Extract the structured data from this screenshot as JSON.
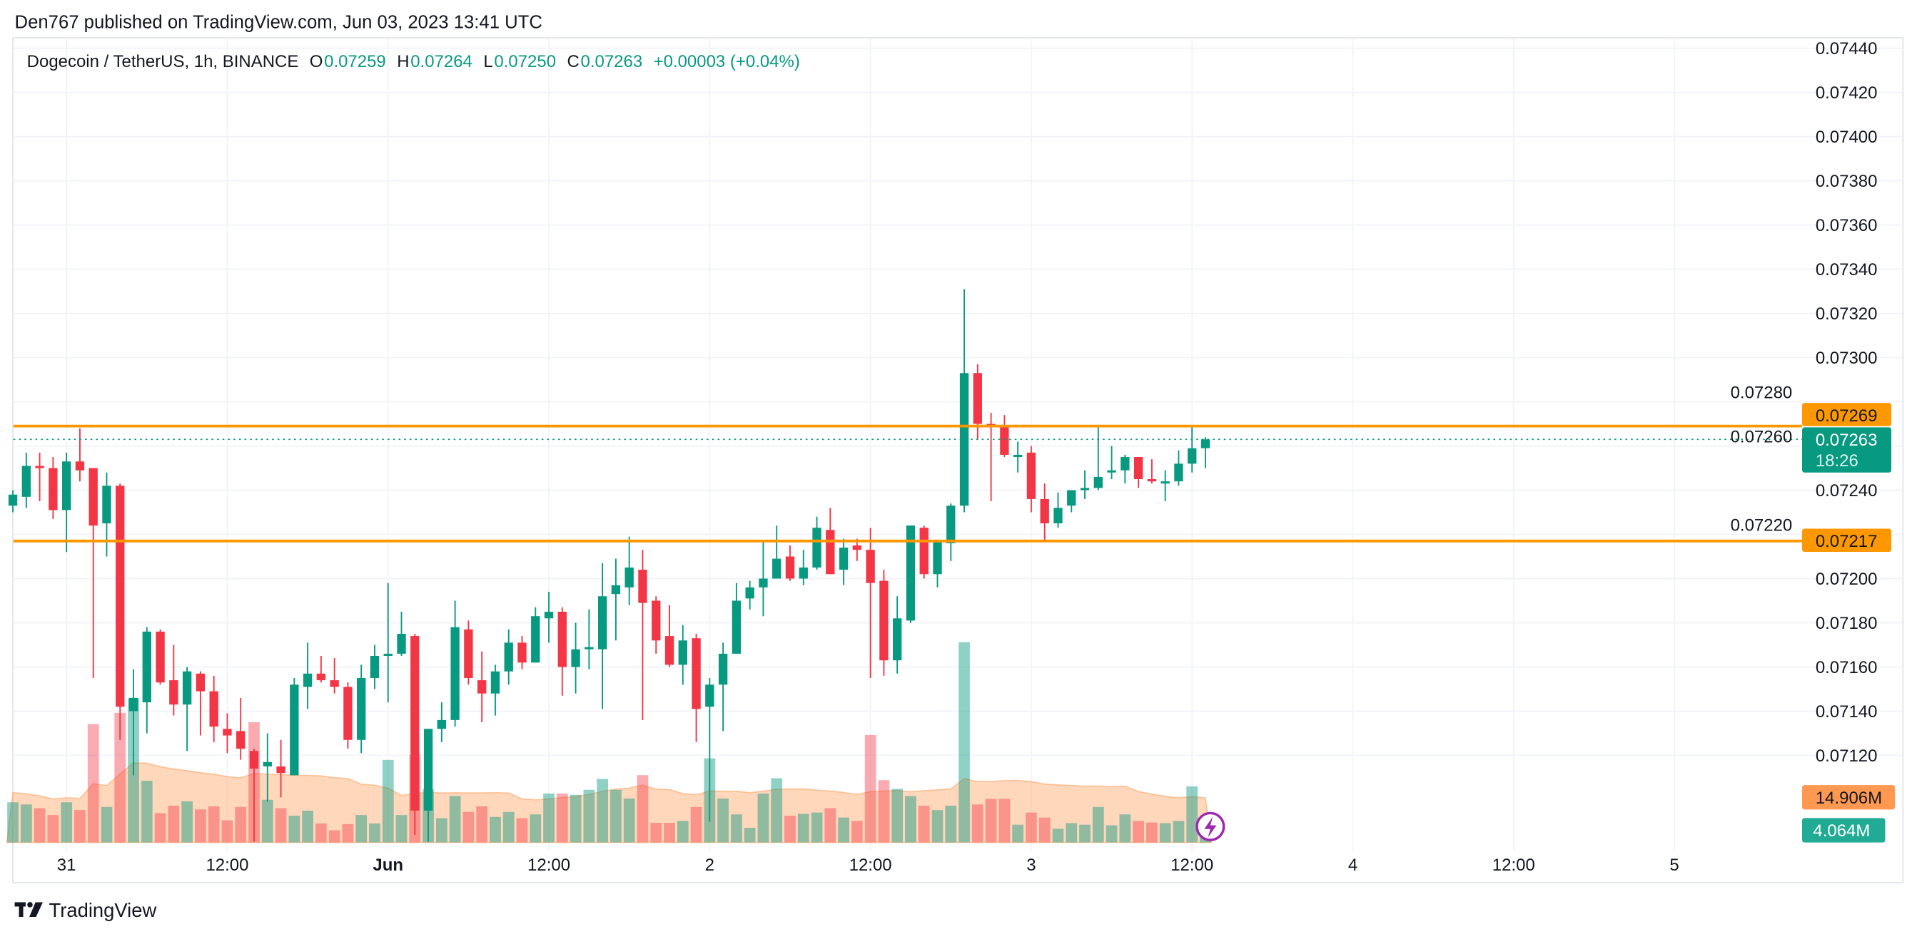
{
  "header": {
    "published": "Den767 published on TradingView.com, Jun 03, 2023 13:41 UTC"
  },
  "legend": {
    "symbol": "Dogecoin / TetherUS, 1h, BINANCE",
    "o_label": "O",
    "o_value": "0.07259",
    "h_label": "H",
    "h_value": "0.07264",
    "l_label": "L",
    "l_value": "0.07250",
    "c_label": "C",
    "c_value": "0.07263",
    "change": "+0.00003 (+0.04%)"
  },
  "price_labels": {
    "resistance": "0.07269",
    "current": "0.07263",
    "countdown": "18:26",
    "support": "0.07217",
    "volume_ma": "14.906M",
    "volume": "4.064M"
  },
  "footer": {
    "brand": "TradingView"
  },
  "colors": {
    "up": "#089981",
    "down": "#f23645",
    "level": "#ff9800",
    "volume_ma": "#ff9850",
    "volume_label": "#22ab94",
    "icon": "#9c27b0"
  },
  "icons": {
    "realtime": "lightning-bolt-icon",
    "logo": "tradingview-logo-icon"
  },
  "chart_data": {
    "type": "candlestick",
    "interval": "1h",
    "ylim": [
      0.0711,
      0.0745
    ],
    "y_ticks": [
      "0.07120",
      "0.07140",
      "0.07160",
      "0.07180",
      "0.07200",
      "0.07220",
      "0.07240",
      "0.07260",
      "0.07280",
      "0.07300",
      "0.07320",
      "0.07340",
      "0.07360",
      "0.07380",
      "0.07400",
      "0.07420",
      "0.07440"
    ],
    "x_ticks": [
      {
        "label": "31",
        "t": "2023-05-31 00:00",
        "bold": false
      },
      {
        "label": "12:00",
        "t": "2023-05-31 12:00",
        "bold": false
      },
      {
        "label": "Jun",
        "t": "2023-06-01 00:00",
        "bold": true
      },
      {
        "label": "12:00",
        "t": "2023-06-01 12:00",
        "bold": false
      },
      {
        "label": "2",
        "t": "2023-06-02 00:00",
        "bold": false
      },
      {
        "label": "12:00",
        "t": "2023-06-02 12:00",
        "bold": false
      },
      {
        "label": "3",
        "t": "2023-06-03 00:00",
        "bold": false
      },
      {
        "label": "12:00",
        "t": "2023-06-03 12:00",
        "bold": false
      },
      {
        "label": "4",
        "t": "2023-06-04 00:00",
        "bold": false
      },
      {
        "label": "12:00",
        "t": "2023-06-04 12:00",
        "bold": false
      },
      {
        "label": "5",
        "t": "2023-06-05 00:00",
        "bold": false
      }
    ],
    "horizontal_levels": [
      0.07269,
      0.07217
    ],
    "last_price": 0.07263,
    "volume_ma_last": 14.906,
    "grid": true,
    "columns": [
      "time",
      "open",
      "high",
      "low",
      "close",
      "volume_M"
    ],
    "candles": [
      [
        "2023-05-30 20:00",
        0.07233,
        0.0724,
        0.0723,
        0.07238,
        12.9
      ],
      [
        "2023-05-30 21:00",
        0.07237,
        0.07257,
        0.07232,
        0.07251,
        12.2
      ],
      [
        "2023-05-30 22:00",
        0.07251,
        0.07257,
        0.07235,
        0.0725,
        11.0
      ],
      [
        "2023-05-30 23:00",
        0.0725,
        0.07255,
        0.07227,
        0.07231,
        8.8
      ],
      [
        "2023-05-31 00:00",
        0.07231,
        0.07257,
        0.07212,
        0.07253,
        12.9
      ],
      [
        "2023-05-31 01:00",
        0.07253,
        0.07268,
        0.07244,
        0.07249,
        10.4
      ],
      [
        "2023-05-31 02:00",
        0.0725,
        0.0725,
        0.07155,
        0.07224,
        38.0
      ],
      [
        "2023-05-31 03:00",
        0.07225,
        0.07248,
        0.0721,
        0.07242,
        11.4
      ],
      [
        "2023-05-31 04:00",
        0.07242,
        0.07243,
        0.07127,
        0.07142,
        41.6
      ],
      [
        "2023-05-31 05:00",
        0.0714,
        0.07159,
        0.07111,
        0.07146,
        46.3
      ],
      [
        "2023-05-31 06:00",
        0.07144,
        0.07178,
        0.0713,
        0.07176,
        19.8
      ],
      [
        "2023-05-31 07:00",
        0.07176,
        0.07177,
        0.07152,
        0.07153,
        9.4
      ],
      [
        "2023-05-31 08:00",
        0.07154,
        0.0717,
        0.07138,
        0.07143,
        11.8
      ],
      [
        "2023-05-31 09:00",
        0.07143,
        0.0716,
        0.07122,
        0.07158,
        13.2
      ],
      [
        "2023-05-31 10:00",
        0.07157,
        0.07158,
        0.07129,
        0.07149,
        10.6
      ],
      [
        "2023-05-31 11:00",
        0.07149,
        0.07156,
        0.07126,
        0.07133,
        11.6
      ],
      [
        "2023-05-31 12:00",
        0.07132,
        0.07139,
        0.07121,
        0.07129,
        7.1
      ],
      [
        "2023-05-31 13:00",
        0.07131,
        0.07146,
        0.07118,
        0.07123,
        11.4
      ],
      [
        "2023-05-31 14:00",
        0.07122,
        0.07123,
        0.07081,
        0.07114,
        38.6
      ],
      [
        "2023-05-31 15:00",
        0.07115,
        0.0713,
        0.07099,
        0.07117,
        13.7
      ],
      [
        "2023-05-31 16:00",
        0.07115,
        0.07127,
        0.07101,
        0.07112,
        11.0
      ],
      [
        "2023-05-31 17:00",
        0.07111,
        0.07155,
        0.07111,
        0.07152,
        8.6
      ],
      [
        "2023-05-31 18:00",
        0.07151,
        0.07171,
        0.07141,
        0.07157,
        10.2
      ],
      [
        "2023-05-31 19:00",
        0.07157,
        0.07165,
        0.07153,
        0.07154,
        6.1
      ],
      [
        "2023-05-31 20:00",
        0.07154,
        0.07164,
        0.07148,
        0.07151,
        3.9
      ],
      [
        "2023-05-31 21:00",
        0.07151,
        0.07153,
        0.07123,
        0.07127,
        5.9
      ],
      [
        "2023-05-31 22:00",
        0.07127,
        0.07161,
        0.07121,
        0.07155,
        8.8
      ],
      [
        "2023-05-31 23:00",
        0.07155,
        0.0717,
        0.0715,
        0.07165,
        6.1
      ],
      [
        "2023-06-01 00:00",
        0.07165,
        0.07198,
        0.07144,
        0.07166,
        26.5
      ],
      [
        "2023-06-01 01:00",
        0.07166,
        0.07185,
        0.07165,
        0.07175,
        8.8
      ],
      [
        "2023-06-01 02:00",
        0.07174,
        0.07175,
        0.07084,
        0.07095,
        28.2
      ],
      [
        "2023-06-01 03:00",
        0.07095,
        0.07132,
        0.07081,
        0.07132,
        17.1
      ],
      [
        "2023-06-01 04:00",
        0.07132,
        0.07144,
        0.07126,
        0.07136,
        7.8
      ],
      [
        "2023-06-01 05:00",
        0.07136,
        0.0719,
        0.07133,
        0.07178,
        14.9
      ],
      [
        "2023-06-01 06:00",
        0.07177,
        0.07181,
        0.07152,
        0.07155,
        9.8
      ],
      [
        "2023-06-01 07:00",
        0.07154,
        0.07167,
        0.07135,
        0.07148,
        11.6
      ],
      [
        "2023-06-01 08:00",
        0.07148,
        0.07161,
        0.07138,
        0.07158,
        8.2
      ],
      [
        "2023-06-01 09:00",
        0.07158,
        0.07177,
        0.07152,
        0.07171,
        9.8
      ],
      [
        "2023-06-01 10:00",
        0.07171,
        0.07174,
        0.07159,
        0.07162,
        7.8
      ],
      [
        "2023-06-01 11:00",
        0.07162,
        0.07187,
        0.07162,
        0.07183,
        9.0
      ],
      [
        "2023-06-01 12:00",
        0.07182,
        0.07194,
        0.07171,
        0.07185,
        15.7
      ],
      [
        "2023-06-01 13:00",
        0.07185,
        0.07187,
        0.07147,
        0.0716,
        15.7
      ],
      [
        "2023-06-01 14:00",
        0.0716,
        0.0718,
        0.07148,
        0.07168,
        15.3
      ],
      [
        "2023-06-01 15:00",
        0.07168,
        0.07186,
        0.07159,
        0.07169,
        16.9
      ],
      [
        "2023-06-01 16:00",
        0.07168,
        0.07207,
        0.07141,
        0.07192,
        20.4
      ],
      [
        "2023-06-01 17:00",
        0.07193,
        0.07209,
        0.07172,
        0.07197,
        16.9
      ],
      [
        "2023-06-01 18:00",
        0.07196,
        0.07219,
        0.07188,
        0.07205,
        14.1
      ],
      [
        "2023-06-01 19:00",
        0.07204,
        0.07213,
        0.07136,
        0.07189,
        21.6
      ],
      [
        "2023-06-01 20:00",
        0.0719,
        0.07192,
        0.07166,
        0.07172,
        6.3
      ],
      [
        "2023-06-01 21:00",
        0.07174,
        0.07188,
        0.0716,
        0.07161,
        6.3
      ],
      [
        "2023-06-01 22:00",
        0.07161,
        0.07179,
        0.07152,
        0.07172,
        6.9
      ],
      [
        "2023-06-01 23:00",
        0.07173,
        0.07175,
        0.07126,
        0.07141,
        11.4
      ],
      [
        "2023-06-02 00:00",
        0.07142,
        0.07155,
        0.0709,
        0.07152,
        27.0
      ],
      [
        "2023-06-02 01:00",
        0.07152,
        0.07171,
        0.07131,
        0.07166,
        14.1
      ],
      [
        "2023-06-02 02:00",
        0.07166,
        0.07198,
        0.07166,
        0.0719,
        9.0
      ],
      [
        "2023-06-02 03:00",
        0.07191,
        0.07199,
        0.07186,
        0.07196,
        4.7
      ],
      [
        "2023-06-02 04:00",
        0.07196,
        0.07217,
        0.07183,
        0.072,
        15.7
      ],
      [
        "2023-06-02 05:00",
        0.072,
        0.07224,
        0.072,
        0.07209,
        20.6
      ],
      [
        "2023-06-02 06:00",
        0.0721,
        0.07215,
        0.07199,
        0.072,
        8.6
      ],
      [
        "2023-06-02 07:00",
        0.072,
        0.07213,
        0.07197,
        0.07205,
        9.2
      ],
      [
        "2023-06-02 08:00",
        0.07205,
        0.07228,
        0.07204,
        0.07223,
        9.6
      ],
      [
        "2023-06-02 09:00",
        0.07222,
        0.07232,
        0.07202,
        0.07202,
        11.0
      ],
      [
        "2023-06-02 10:00",
        0.07204,
        0.07218,
        0.07197,
        0.07214,
        8.0
      ],
      [
        "2023-06-02 11:00",
        0.07215,
        0.07218,
        0.07208,
        0.07213,
        6.9
      ],
      [
        "2023-06-02 12:00",
        0.07213,
        0.07223,
        0.07155,
        0.07198,
        34.5
      ],
      [
        "2023-06-02 13:00",
        0.07199,
        0.07204,
        0.07156,
        0.07163,
        20.0
      ],
      [
        "2023-06-02 14:00",
        0.07163,
        0.07192,
        0.07157,
        0.07182,
        17.2
      ],
      [
        "2023-06-02 15:00",
        0.07181,
        0.07224,
        0.0718,
        0.07224,
        14.9
      ],
      [
        "2023-06-02 16:00",
        0.07223,
        0.07224,
        0.072,
        0.07202,
        11.8
      ],
      [
        "2023-06-02 17:00",
        0.07202,
        0.07217,
        0.07196,
        0.07217,
        10.4
      ],
      [
        "2023-06-02 18:00",
        0.07216,
        0.07234,
        0.07208,
        0.07233,
        11.8
      ],
      [
        "2023-06-02 19:00",
        0.07233,
        0.07331,
        0.0723,
        0.07293,
        64.3
      ],
      [
        "2023-06-02 20:00",
        0.07293,
        0.07297,
        0.07263,
        0.0727,
        12.2
      ],
      [
        "2023-06-02 21:00",
        0.0727,
        0.07275,
        0.07235,
        0.07269,
        14.0
      ],
      [
        "2023-06-02 22:00",
        0.07269,
        0.07274,
        0.07255,
        0.07256,
        14.0
      ],
      [
        "2023-06-02 23:00",
        0.07255,
        0.07262,
        0.07248,
        0.07256,
        5.7
      ],
      [
        "2023-06-03 00:00",
        0.07257,
        0.0726,
        0.0723,
        0.07236,
        9.6
      ],
      [
        "2023-06-03 01:00",
        0.07236,
        0.07243,
        0.07217,
        0.07225,
        8.0
      ],
      [
        "2023-06-03 02:00",
        0.07225,
        0.07239,
        0.07223,
        0.07232,
        4.4
      ],
      [
        "2023-06-03 03:00",
        0.07233,
        0.0724,
        0.0723,
        0.0724,
        6.2
      ],
      [
        "2023-06-03 04:00",
        0.0724,
        0.07249,
        0.07236,
        0.07241,
        5.7
      ],
      [
        "2023-06-03 05:00",
        0.07241,
        0.07269,
        0.0724,
        0.07246,
        11.4
      ],
      [
        "2023-06-03 06:00",
        0.07248,
        0.0726,
        0.07245,
        0.07249,
        5.5
      ],
      [
        "2023-06-03 07:00",
        0.07249,
        0.07256,
        0.07243,
        0.07255,
        9.0
      ],
      [
        "2023-06-03 08:00",
        0.07255,
        0.07255,
        0.07241,
        0.07245,
        6.9
      ],
      [
        "2023-06-03 09:00",
        0.07245,
        0.07254,
        0.07243,
        0.07244,
        6.4
      ],
      [
        "2023-06-03 10:00",
        0.07243,
        0.07249,
        0.07235,
        0.07244,
        6.2
      ],
      [
        "2023-06-03 11:00",
        0.07244,
        0.07258,
        0.07242,
        0.07252,
        6.9
      ],
      [
        "2023-06-03 12:00",
        0.07252,
        0.07269,
        0.07248,
        0.07259,
        18.0
      ],
      [
        "2023-06-03 13:00",
        0.07259,
        0.07264,
        0.0725,
        0.07263,
        4.064
      ]
    ]
  }
}
